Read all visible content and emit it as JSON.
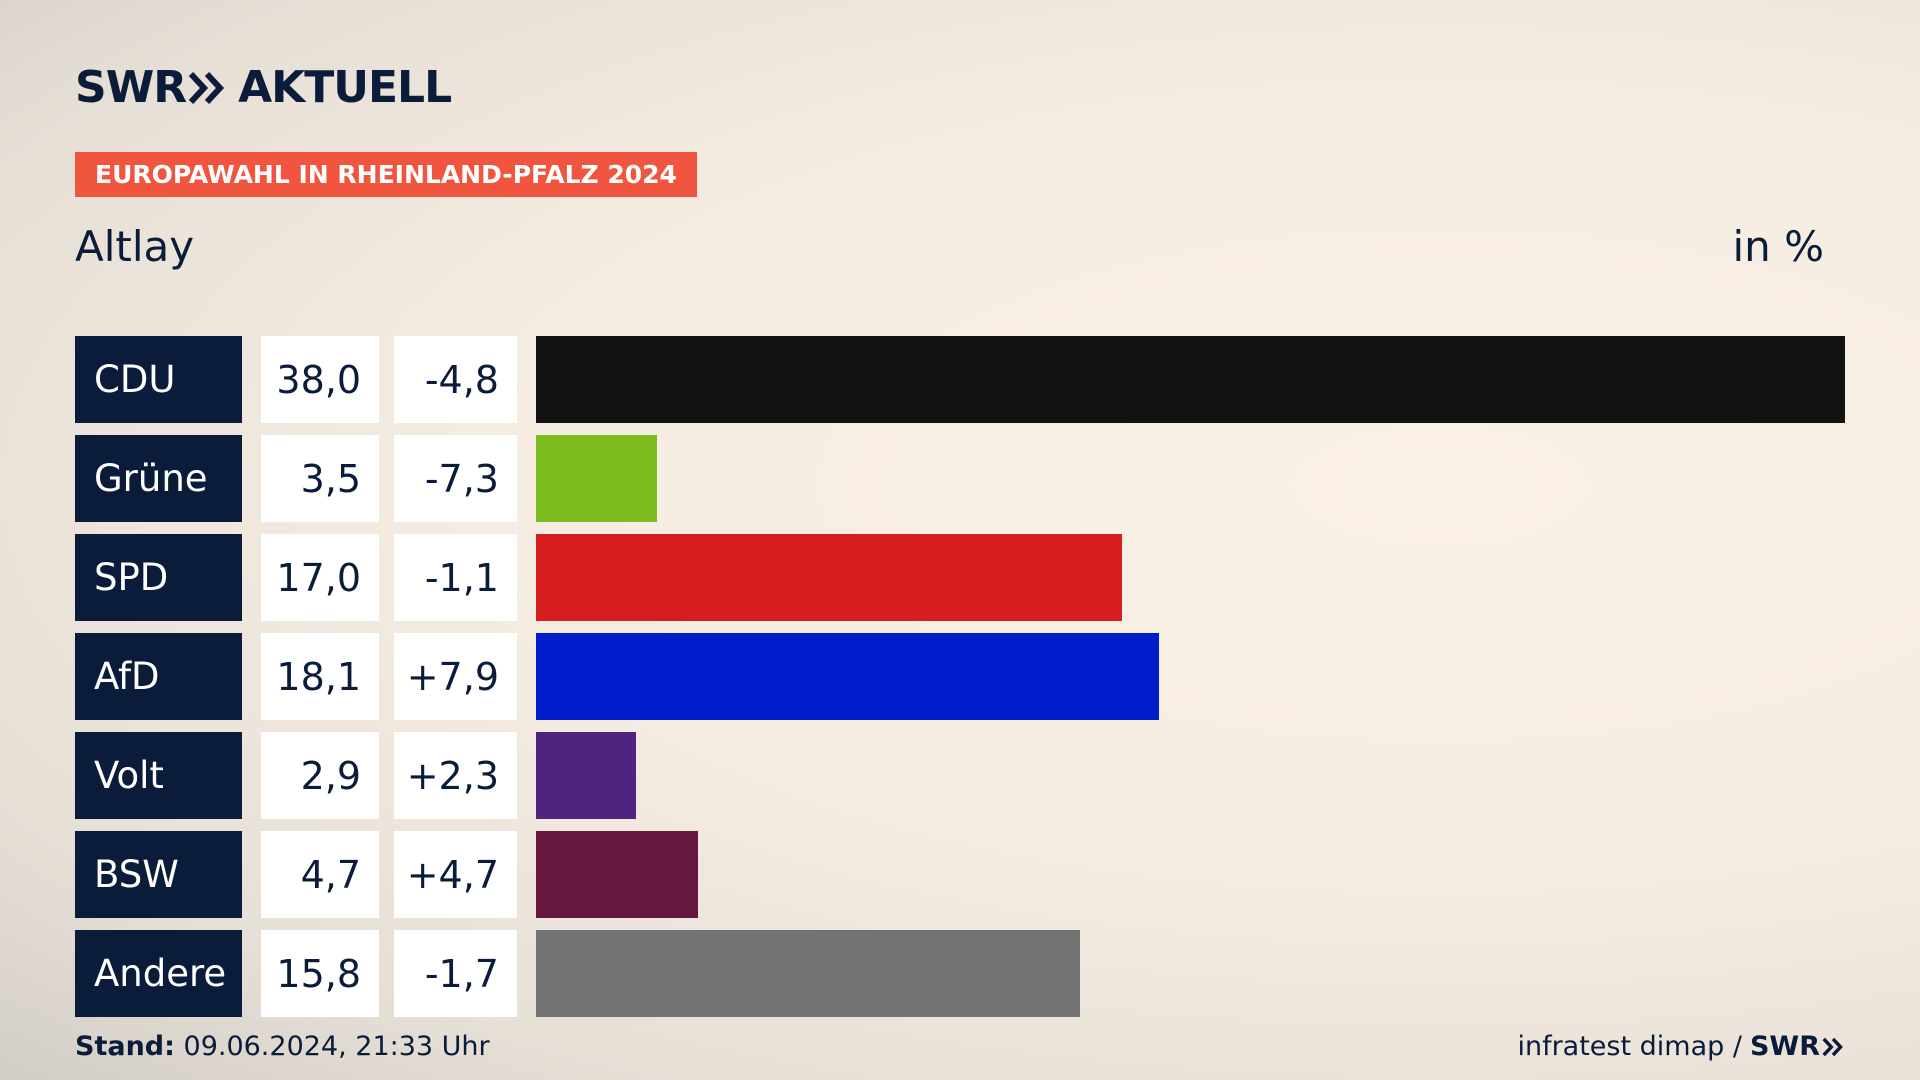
{
  "header": {
    "logo_left": "SWR",
    "logo_right": "AKTUELL",
    "badge": "EUROPAWAHL IN RHEINLAND-PFALZ 2024",
    "subtitle": "Altlay",
    "unit": "in %"
  },
  "footer": {
    "stand_label": "Stand:",
    "stand_value": "09.06.2024, 21:33 Uhr",
    "source": "infratest dimap /",
    "source_logo": "SWR"
  },
  "chart_data": {
    "type": "bar",
    "title": "",
    "xlabel": "",
    "ylabel": "",
    "ylim": [
      0,
      38
    ],
    "categories": [
      "CDU",
      "Grüne",
      "SPD",
      "AfD",
      "Volt",
      "BSW",
      "Andere"
    ],
    "values": [
      38.0,
      3.5,
      17.0,
      18.1,
      2.9,
      4.7,
      15.8
    ],
    "value_labels": [
      "38,0",
      "3,5",
      "17,0",
      "18,1",
      "2,9",
      "4,7",
      "15,8"
    ],
    "diff_labels": [
      "-4,8",
      "-7,3",
      "-1,1",
      "+7,9",
      "+2,3",
      "+4,7",
      "-1,7"
    ],
    "colors": [
      "#121212",
      "#7bbd1f",
      "#d61e1e",
      "#001ecc",
      "#502380",
      "#66173f",
      "#737373"
    ]
  }
}
